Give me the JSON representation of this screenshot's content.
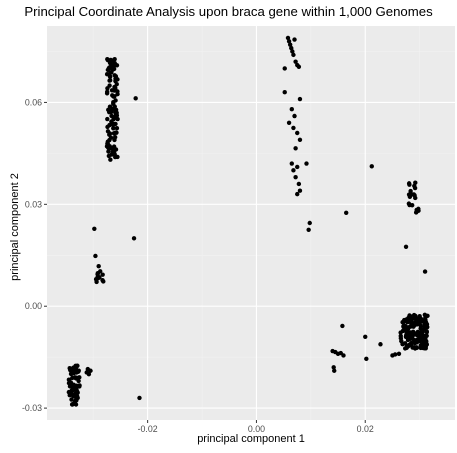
{
  "chart_data": {
    "type": "scatter",
    "title": "Principal Coordinate Analysis upon braca gene within 1,000 Genomes",
    "xlabel": "principal component 1",
    "ylabel": "principal component 2",
    "xlim": [
      -0.0385,
      0.0365
    ],
    "ylim": [
      -0.0335,
      0.0825
    ],
    "x_ticks": [
      -0.02,
      0.0,
      0.02
    ],
    "x_tick_labels": [
      "-0.02",
      "0.00",
      "0.02"
    ],
    "y_ticks": [
      -0.03,
      0.0,
      0.03,
      0.06
    ],
    "y_tick_labels": [
      "-0.03",
      "0.00",
      "0.03",
      "0.06"
    ],
    "grid": true,
    "background": "#ebebeb",
    "point_color": "#000000",
    "clusters": [
      {
        "x_range": [
          -0.0345,
          -0.0325
        ],
        "y_range": [
          -0.029,
          -0.0175
        ],
        "count": 80
      },
      {
        "x_range": [
          -0.0275,
          -0.0255
        ],
        "y_range": [
          0.043,
          0.073
        ],
        "count": 110
      },
      {
        "x_range": [
          -0.0295,
          -0.028
        ],
        "y_range": [
          0.007,
          0.0105
        ],
        "count": 12
      },
      {
        "x_range": [
          0.0265,
          0.0315
        ],
        "y_range": [
          -0.0125,
          -0.0025
        ],
        "count": 160
      },
      {
        "x_range": [
          0.028,
          0.03
        ],
        "y_range": [
          0.027,
          0.037
        ],
        "count": 20
      }
    ],
    "points": [
      [
        -0.0222,
        0.0612
      ],
      [
        -0.0298,
        0.0228
      ],
      [
        -0.0296,
        0.0148
      ],
      [
        -0.029,
        0.0118
      ],
      [
        -0.0225,
        0.02
      ],
      [
        -0.0312,
        -0.0195
      ],
      [
        -0.0305,
        -0.019
      ],
      [
        -0.0308,
        -0.02
      ],
      [
        -0.031,
        -0.0185
      ],
      [
        -0.0215,
        -0.027
      ],
      [
        0.0058,
        0.079
      ],
      [
        0.006,
        0.078
      ],
      [
        0.0062,
        0.077
      ],
      [
        0.0064,
        0.076
      ],
      [
        0.0066,
        0.075
      ],
      [
        0.007,
        0.0785
      ],
      [
        0.0068,
        0.074
      ],
      [
        0.0072,
        0.072
      ],
      [
        0.0075,
        0.071
      ],
      [
        0.0078,
        0.0705
      ],
      [
        0.0052,
        0.07
      ],
      [
        0.008,
        0.061
      ],
      [
        0.0052,
        0.063
      ],
      [
        0.0065,
        0.058
      ],
      [
        0.007,
        0.056
      ],
      [
        0.006,
        0.054
      ],
      [
        0.0068,
        0.0525
      ],
      [
        0.0075,
        0.051
      ],
      [
        0.008,
        0.049
      ],
      [
        0.0072,
        0.0465
      ],
      [
        0.0065,
        0.042
      ],
      [
        0.0068,
        0.04
      ],
      [
        0.0075,
        0.041
      ],
      [
        0.0072,
        0.038
      ],
      [
        0.0078,
        0.036
      ],
      [
        0.008,
        0.034
      ],
      [
        0.0092,
        0.042
      ],
      [
        0.0075,
        0.033
      ],
      [
        0.0098,
        0.0245
      ],
      [
        0.0096,
        0.0225
      ],
      [
        0.0165,
        0.0275
      ],
      [
        0.0212,
        0.0412
      ],
      [
        0.0158,
        -0.0058
      ],
      [
        0.014,
        -0.0132
      ],
      [
        0.015,
        -0.014
      ],
      [
        0.0145,
        -0.0135
      ],
      [
        0.0155,
        -0.0138
      ],
      [
        0.016,
        -0.0145
      ],
      [
        0.0142,
        -0.018
      ],
      [
        0.0143,
        -0.019
      ],
      [
        0.02,
        -0.009
      ],
      [
        0.0202,
        -0.0155
      ],
      [
        0.0228,
        -0.0112
      ],
      [
        0.025,
        -0.0145
      ],
      [
        0.0255,
        -0.0142
      ],
      [
        0.0262,
        -0.014
      ],
      [
        0.031,
        0.0102
      ],
      [
        0.0275,
        0.0175
      ]
    ]
  }
}
